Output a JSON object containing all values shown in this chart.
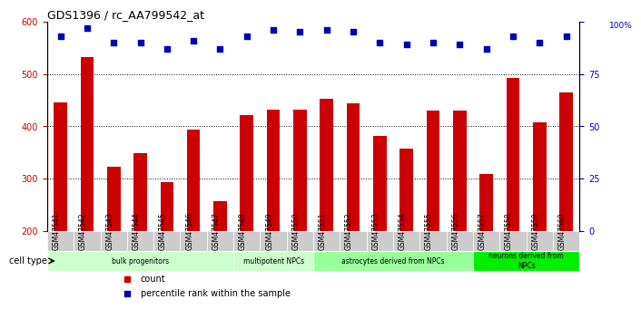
{
  "title": "GDS1396 / rc_AA799542_at",
  "samples": [
    "GSM47541",
    "GSM47542",
    "GSM47543",
    "GSM47544",
    "GSM47545",
    "GSM47546",
    "GSM47547",
    "GSM47548",
    "GSM47549",
    "GSM47550",
    "GSM47551",
    "GSM47552",
    "GSM47553",
    "GSM47554",
    "GSM47555",
    "GSM47556",
    "GSM47557",
    "GSM47558",
    "GSM47559",
    "GSM47560"
  ],
  "counts": [
    445,
    533,
    322,
    349,
    293,
    393,
    257,
    422,
    432,
    432,
    453,
    444,
    382,
    358,
    430,
    430,
    309,
    492,
    408,
    465
  ],
  "percentiles": [
    93,
    97,
    90,
    90,
    87,
    91,
    87,
    93,
    96,
    95,
    96,
    95,
    90,
    89,
    90,
    89,
    87,
    93,
    90,
    93
  ],
  "ylim_left": [
    200,
    600
  ],
  "ylim_right": [
    0,
    100
  ],
  "yticks_left": [
    200,
    300,
    400,
    500,
    600
  ],
  "yticks_right": [
    0,
    25,
    50,
    75,
    100
  ],
  "bar_color": "#CC0000",
  "dot_color": "#0000BB",
  "cell_types": [
    {
      "label": "bulk progenitors",
      "start": 0,
      "end": 7,
      "color": "#CCFFCC"
    },
    {
      "label": "multipotent NPCs",
      "start": 7,
      "end": 10,
      "color": "#CCFFCC"
    },
    {
      "label": "astrocytes derived from NPCs",
      "start": 10,
      "end": 16,
      "color": "#99FF99"
    },
    {
      "label": "neurons derived from\nNPCs",
      "start": 16,
      "end": 20,
      "color": "#00EE00"
    }
  ],
  "legend_count_color": "#CC0000",
  "legend_pct_color": "#0000BB",
  "xtick_bg_color": "#CCCCCC"
}
